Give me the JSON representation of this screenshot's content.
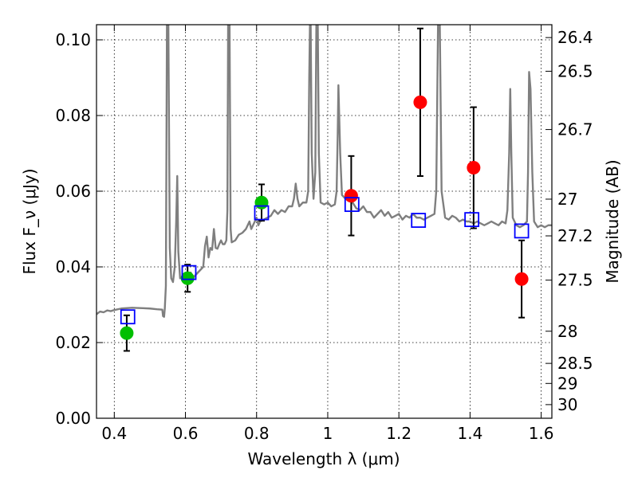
{
  "chart_data": {
    "type": "scatter",
    "xlabel": "Wavelength λ (μm)",
    "ylabel": "Flux F_ν (μJy)",
    "ylabel_right": "Magnitude (AB)",
    "xlim": [
      0.35,
      1.63
    ],
    "ylim": [
      0.0,
      0.104
    ],
    "x_ticks": [
      0.4,
      0.6,
      0.8,
      1.0,
      1.2,
      1.4,
      1.6
    ],
    "x_tick_labels": [
      "0.4",
      "0.6",
      "0.8",
      "1",
      "1.2",
      "1.4",
      "1.6"
    ],
    "y_ticks": [
      0.0,
      0.02,
      0.04,
      0.06,
      0.08,
      0.1
    ],
    "y_tick_labels": [
      "0.00",
      "0.02",
      "0.04",
      "0.06",
      "0.08",
      "0.10"
    ],
    "right_ticks": [
      {
        "label": "26.4",
        "flux": 0.1006
      },
      {
        "label": "26.5",
        "flux": 0.0917
      },
      {
        "label": "26.7",
        "flux": 0.0763
      },
      {
        "label": "27",
        "flux": 0.0579
      },
      {
        "label": "27.2",
        "flux": 0.0482
      },
      {
        "label": "27.5",
        "flux": 0.0365
      },
      {
        "label": "28",
        "flux": 0.023
      },
      {
        "label": "28.5",
        "flux": 0.0145
      },
      {
        "label": "29",
        "flux": 0.0092
      },
      {
        "label": "30",
        "flux": 0.0036
      }
    ],
    "grid": true,
    "colors": {
      "spectrum": "#7f7f7f",
      "green": "#00bf00",
      "red": "#ff0000",
      "model": "#0000ff"
    },
    "series": [
      {
        "kind": "line",
        "points": [
          [
            0.35,
            0.0275
          ],
          [
            0.36,
            0.0282
          ],
          [
            0.37,
            0.028
          ],
          [
            0.38,
            0.0285
          ],
          [
            0.39,
            0.0283
          ],
          [
            0.4,
            0.0286
          ],
          [
            0.42,
            0.029
          ],
          [
            0.45,
            0.0292
          ],
          [
            0.48,
            0.0291
          ],
          [
            0.5,
            0.029
          ],
          [
            0.52,
            0.0288
          ],
          [
            0.535,
            0.0287
          ],
          [
            0.537,
            0.027
          ],
          [
            0.54,
            0.0268
          ],
          [
            0.542,
            0.029
          ],
          [
            0.545,
            0.035
          ],
          [
            0.548,
            0.104
          ],
          [
            0.552,
            0.104
          ],
          [
            0.556,
            0.045
          ],
          [
            0.56,
            0.037
          ],
          [
            0.565,
            0.036
          ],
          [
            0.57,
            0.04
          ],
          [
            0.574,
            0.052
          ],
          [
            0.577,
            0.064
          ],
          [
            0.58,
            0.044
          ],
          [
            0.585,
            0.037
          ],
          [
            0.59,
            0.0372
          ],
          [
            0.6,
            0.0375
          ],
          [
            0.605,
            0.038
          ],
          [
            0.61,
            0.038
          ],
          [
            0.615,
            0.0385
          ],
          [
            0.62,
            0.037
          ],
          [
            0.63,
            0.038
          ],
          [
            0.64,
            0.039
          ],
          [
            0.65,
            0.04
          ],
          [
            0.655,
            0.0455
          ],
          [
            0.66,
            0.048
          ],
          [
            0.665,
            0.0425
          ],
          [
            0.67,
            0.045
          ],
          [
            0.675,
            0.0445
          ],
          [
            0.68,
            0.05
          ],
          [
            0.685,
            0.045
          ],
          [
            0.69,
            0.0448
          ],
          [
            0.695,
            0.046
          ],
          [
            0.7,
            0.047
          ],
          [
            0.705,
            0.046
          ],
          [
            0.71,
            0.046
          ],
          [
            0.715,
            0.047
          ],
          [
            0.718,
            0.055
          ],
          [
            0.72,
            0.104
          ],
          [
            0.724,
            0.104
          ],
          [
            0.727,
            0.05
          ],
          [
            0.73,
            0.0465
          ],
          [
            0.74,
            0.047
          ],
          [
            0.75,
            0.0485
          ],
          [
            0.76,
            0.049
          ],
          [
            0.77,
            0.05
          ],
          [
            0.78,
            0.052
          ],
          [
            0.785,
            0.05
          ],
          [
            0.79,
            0.051
          ],
          [
            0.8,
            0.053
          ],
          [
            0.805,
            0.051
          ],
          [
            0.81,
            0.052
          ],
          [
            0.82,
            0.0525
          ],
          [
            0.83,
            0.053
          ],
          [
            0.84,
            0.0535
          ],
          [
            0.85,
            0.055
          ],
          [
            0.86,
            0.054
          ],
          [
            0.87,
            0.055
          ],
          [
            0.88,
            0.0545
          ],
          [
            0.89,
            0.056
          ],
          [
            0.9,
            0.056
          ],
          [
            0.905,
            0.058
          ],
          [
            0.91,
            0.062
          ],
          [
            0.915,
            0.058
          ],
          [
            0.92,
            0.056
          ],
          [
            0.93,
            0.057
          ],
          [
            0.94,
            0.057
          ],
          [
            0.945,
            0.06
          ],
          [
            0.948,
            0.09
          ],
          [
            0.95,
            0.104
          ],
          [
            0.952,
            0.104
          ],
          [
            0.955,
            0.07
          ],
          [
            0.96,
            0.058
          ],
          [
            0.965,
            0.065
          ],
          [
            0.968,
            0.104
          ],
          [
            0.972,
            0.104
          ],
          [
            0.975,
            0.07
          ],
          [
            0.98,
            0.057
          ],
          [
            0.99,
            0.0565
          ],
          [
            1.0,
            0.057
          ],
          [
            1.01,
            0.056
          ],
          [
            1.02,
            0.0565
          ],
          [
            1.025,
            0.06
          ],
          [
            1.028,
            0.075
          ],
          [
            1.03,
            0.088
          ],
          [
            1.035,
            0.07
          ],
          [
            1.04,
            0.059
          ],
          [
            1.05,
            0.058
          ],
          [
            1.06,
            0.0575
          ],
          [
            1.07,
            0.057
          ],
          [
            1.08,
            0.0555
          ],
          [
            1.09,
            0.055
          ],
          [
            1.1,
            0.056
          ],
          [
            1.11,
            0.0545
          ],
          [
            1.12,
            0.0545
          ],
          [
            1.13,
            0.053
          ],
          [
            1.14,
            0.054
          ],
          [
            1.15,
            0.055
          ],
          [
            1.16,
            0.0535
          ],
          [
            1.17,
            0.0545
          ],
          [
            1.18,
            0.053
          ],
          [
            1.19,
            0.0535
          ],
          [
            1.2,
            0.054
          ],
          [
            1.21,
            0.0525
          ],
          [
            1.22,
            0.0535
          ],
          [
            1.23,
            0.053
          ],
          [
            1.24,
            0.054
          ],
          [
            1.25,
            0.053
          ],
          [
            1.26,
            0.053
          ],
          [
            1.27,
            0.0525
          ],
          [
            1.28,
            0.053
          ],
          [
            1.29,
            0.0535
          ],
          [
            1.3,
            0.054
          ],
          [
            1.305,
            0.06
          ],
          [
            1.31,
            0.104
          ],
          [
            1.315,
            0.104
          ],
          [
            1.32,
            0.06
          ],
          [
            1.33,
            0.053
          ],
          [
            1.34,
            0.0525
          ],
          [
            1.35,
            0.0535
          ],
          [
            1.36,
            0.053
          ],
          [
            1.37,
            0.052
          ],
          [
            1.38,
            0.0525
          ],
          [
            1.39,
            0.052
          ],
          [
            1.4,
            0.052
          ],
          [
            1.41,
            0.0515
          ],
          [
            1.42,
            0.052
          ],
          [
            1.43,
            0.0515
          ],
          [
            1.44,
            0.051
          ],
          [
            1.45,
            0.0515
          ],
          [
            1.46,
            0.052
          ],
          [
            1.47,
            0.0515
          ],
          [
            1.48,
            0.051
          ],
          [
            1.49,
            0.052
          ],
          [
            1.5,
            0.0515
          ],
          [
            1.505,
            0.055
          ],
          [
            1.51,
            0.07
          ],
          [
            1.513,
            0.087
          ],
          [
            1.516,
            0.07
          ],
          [
            1.52,
            0.053
          ],
          [
            1.53,
            0.051
          ],
          [
            1.54,
            0.0505
          ],
          [
            1.55,
            0.051
          ],
          [
            1.56,
            0.052
          ],
          [
            1.563,
            0.065
          ],
          [
            1.566,
            0.0915
          ],
          [
            1.57,
            0.087
          ],
          [
            1.575,
            0.065
          ],
          [
            1.58,
            0.052
          ],
          [
            1.59,
            0.0505
          ],
          [
            1.6,
            0.051
          ],
          [
            1.61,
            0.0505
          ],
          [
            1.62,
            0.051
          ],
          [
            1.63,
            0.051
          ]
        ]
      },
      {
        "kind": "points",
        "color_key": "green",
        "points": [
          {
            "x": 0.435,
            "y": 0.0225,
            "err": 0.0047
          },
          {
            "x": 0.606,
            "y": 0.037,
            "err": 0.0036
          },
          {
            "x": 0.814,
            "y": 0.057,
            "err": 0.0048
          }
        ]
      },
      {
        "kind": "points",
        "color_key": "red",
        "points": [
          {
            "x": 1.066,
            "y": 0.0588,
            "err": 0.0105
          },
          {
            "x": 1.26,
            "y": 0.0835,
            "err": 0.0195
          },
          {
            "x": 1.41,
            "y": 0.0662,
            "err": 0.016
          },
          {
            "x": 1.545,
            "y": 0.0368,
            "err": 0.0102
          }
        ]
      },
      {
        "kind": "squares",
        "color_key": "model",
        "points": [
          {
            "x": 0.438,
            "y": 0.0268
          },
          {
            "x": 0.61,
            "y": 0.0385
          },
          {
            "x": 0.814,
            "y": 0.0543
          },
          {
            "x": 1.068,
            "y": 0.0565
          },
          {
            "x": 1.255,
            "y": 0.0523
          },
          {
            "x": 1.405,
            "y": 0.0525
          },
          {
            "x": 1.545,
            "y": 0.0495
          }
        ]
      }
    ]
  }
}
